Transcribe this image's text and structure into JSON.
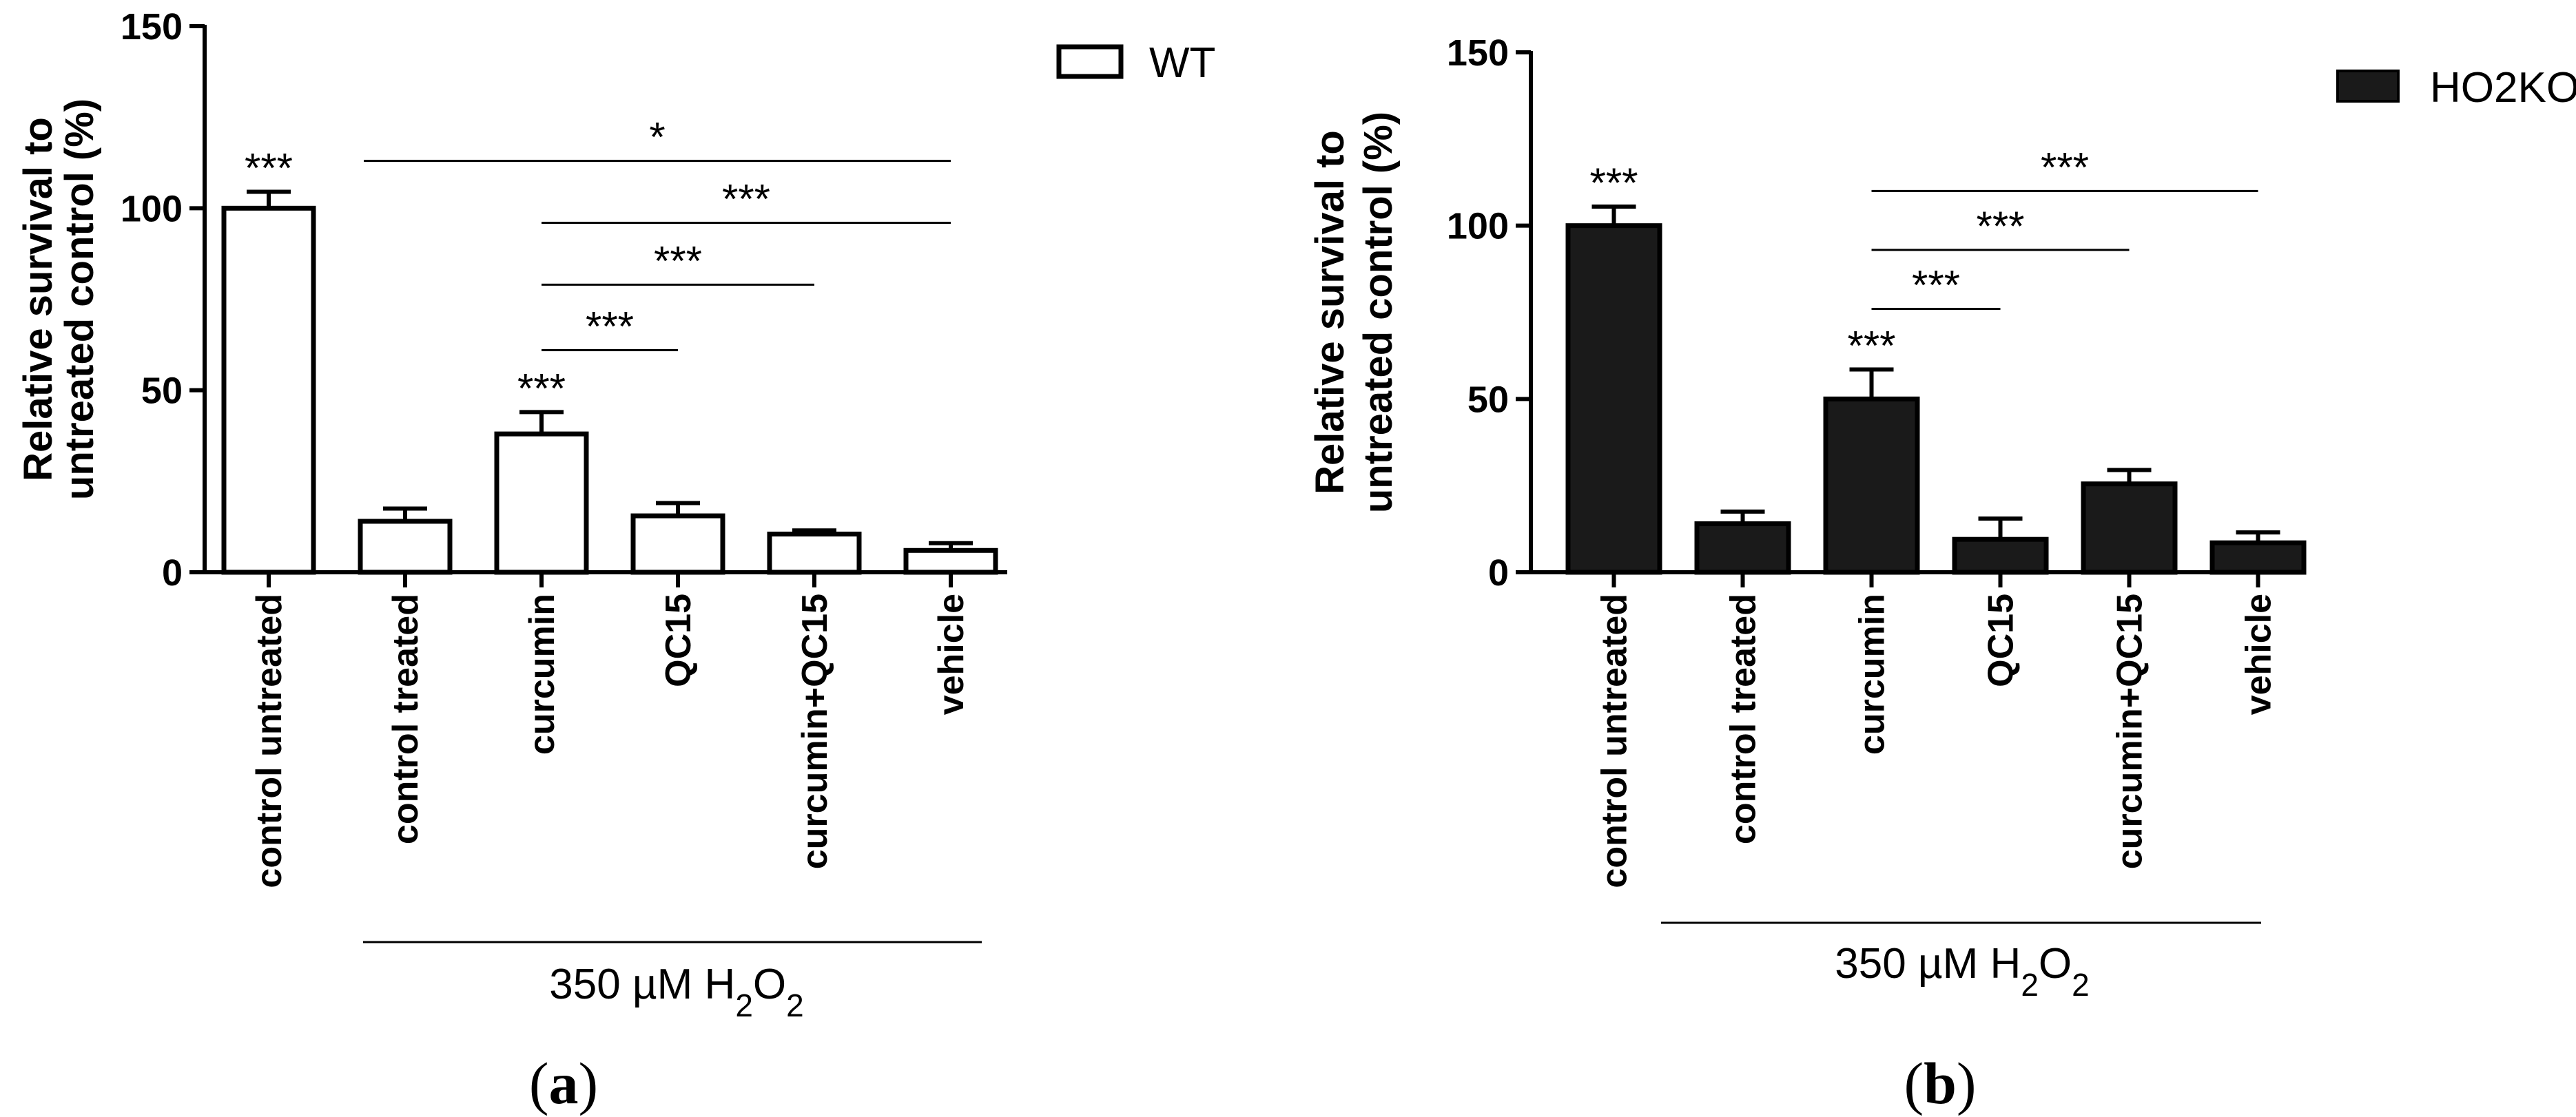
{
  "chart_data": [
    {
      "type": "bar",
      "panel": "a",
      "ylabel_line1": "Relative survival to",
      "ylabel_line2": "untreated control (%)",
      "ylim": [
        0,
        150
      ],
      "yticks": [
        "0",
        "50",
        "100",
        "150"
      ],
      "categories": [
        "control untreated",
        "control treated",
        "curcumin",
        "QC15",
        "curcumin+QC15",
        "vehicle"
      ],
      "series": [
        {
          "name": "WT",
          "values": [
            100,
            14,
            38,
            15.5,
            10.5,
            6
          ],
          "errors": [
            4.5,
            3.5,
            6,
            3.5,
            1,
            2
          ],
          "color": "#ffffff",
          "stroke": "#000000"
        }
      ],
      "bar_stars": [
        "***",
        "",
        "***",
        "",
        "",
        ""
      ],
      "comparisons": [
        {
          "from": 1,
          "to": 5,
          "y": 113,
          "label": "*"
        },
        {
          "from": 2,
          "to": 5,
          "y": 96,
          "label": "***"
        },
        {
          "from": 2,
          "to": 4,
          "y": 79,
          "label": "***"
        },
        {
          "from": 2,
          "to": 3,
          "y": 61,
          "label": "***"
        }
      ],
      "treatment_label": {
        "text": "350 µM H",
        "sub1": "2",
        "mid": "O",
        "sub2": "2"
      },
      "legend": "top-right",
      "grid": false
    },
    {
      "type": "bar",
      "panel": "b",
      "ylabel_line1": "Relative survival to",
      "ylabel_line2": "untreated control (%)",
      "ylim": [
        0,
        150
      ],
      "yticks": [
        "0",
        "50",
        "100",
        "150"
      ],
      "categories": [
        "control untreated",
        "control treated",
        "curcumin",
        "QC15",
        "curcumin+QC15",
        "vehicle"
      ],
      "series": [
        {
          "name": "HO2KO",
          "values": [
            100,
            14,
            50,
            9.5,
            25.5,
            8.5
          ],
          "errors": [
            5.5,
            3.5,
            8.5,
            6,
            4,
            3
          ],
          "color": "#1a1a1a",
          "stroke": "#000000"
        }
      ],
      "bar_stars": [
        "***",
        "",
        "***",
        "",
        "",
        ""
      ],
      "comparisons": [
        {
          "from": 2,
          "to": 5,
          "y": 110,
          "label": "***"
        },
        {
          "from": 2,
          "to": 4,
          "y": 93,
          "label": "***"
        },
        {
          "from": 2,
          "to": 3,
          "y": 76,
          "label": "***"
        }
      ],
      "treatment_label": {
        "text": "350 µM H",
        "sub1": "2",
        "mid": "O",
        "sub2": "2"
      },
      "legend": "top-right",
      "grid": false
    }
  ],
  "legend_a": {
    "label": "WT"
  },
  "legend_b": {
    "label": "HO2KO"
  },
  "panel_labels": {
    "a": "a",
    "b": "b"
  }
}
